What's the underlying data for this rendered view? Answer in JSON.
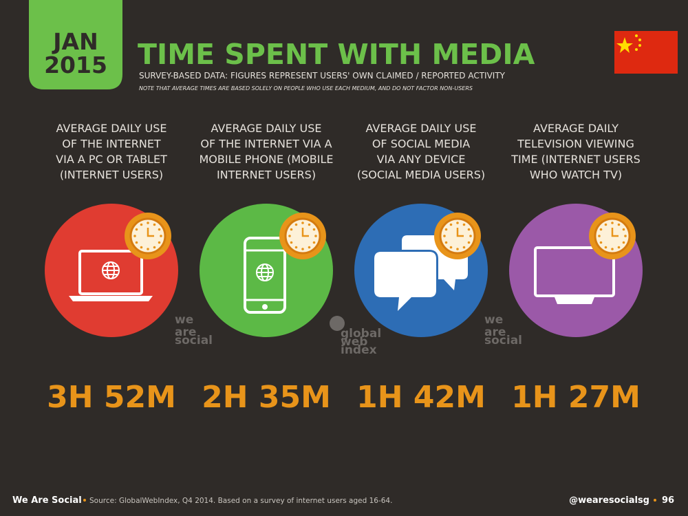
{
  "header": {
    "date_lines": [
      "JAN",
      "2015"
    ],
    "title": "TIME SPENT WITH MEDIA",
    "subtitle": "SURVEY-BASED DATA: FIGURES REPRESENT USERS' OWN CLAIMED / REPORTED ACTIVITY",
    "note": "NOTE THAT AVERAGE TIMES ARE BASED SOLELY ON PEOPLE WHO USE EACH MEDIUM, AND DO NOT FACTOR NON-USERS"
  },
  "panels": [
    {
      "description": [
        "AVERAGE DAILY USE",
        "OF THE INTERNET",
        "VIA A PC OR TABLET",
        "(INTERNET USERS)"
      ],
      "value": "3H 52M"
    },
    {
      "description": [
        "AVERAGE DAILY USE",
        "OF THE INTERNET VIA A",
        "MOBILE PHONE (MOBILE",
        "INTERNET USERS)"
      ],
      "value": "2H 35M"
    },
    {
      "description": [
        "AVERAGE DAILY USE",
        "OF SOCIAL MEDIA",
        "VIA ANY DEVICE",
        "(SOCIAL MEDIA USERS)"
      ],
      "value": "1H 42M"
    },
    {
      "description": [
        "AVERAGE DAILY",
        "TELEVISION VIEWING",
        "TIME (INTERNET USERS",
        "WHO WATCH TV)"
      ],
      "value": "1H 27M"
    }
  ],
  "watermarks": [
    {
      "lines": [
        "we",
        "are",
        "social"
      ]
    },
    {
      "lines": [
        "global",
        "web",
        "index"
      ]
    },
    {
      "lines": [
        "we",
        "are",
        "social"
      ]
    }
  ],
  "footer": {
    "brand": "We Are Social",
    "source": "Source: GlobalWebIndex, Q4 2014. Based on a survey of internet users aged 16-64.",
    "handle": "@wearesocialsg",
    "page": "96"
  }
}
